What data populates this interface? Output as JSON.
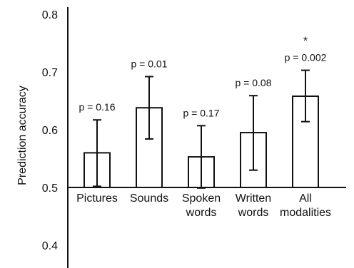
{
  "chart_data": {
    "type": "bar",
    "categories": [
      [
        "Pictures"
      ],
      [
        "Sounds"
      ],
      [
        "Spoken",
        "words"
      ],
      [
        "Written",
        "words"
      ],
      [
        "All",
        "modalities"
      ]
    ],
    "values": [
      0.56,
      0.638,
      0.553,
      0.595,
      0.658
    ],
    "error_low": [
      0.502,
      0.584,
      0.499,
      0.53,
      0.614
    ],
    "error_high": [
      0.617,
      0.692,
      0.607,
      0.659,
      0.703
    ],
    "annotations": [
      "p = 0.16",
      "p = 0.01",
      "p = 0.17",
      "p = 0.08",
      "p = 0.002"
    ],
    "significance_marks": [
      "",
      "",
      "",
      "",
      "*"
    ],
    "title": "",
    "xlabel": "",
    "ylabel": "Prediction accuracy",
    "ylim": [
      0.35,
      0.8
    ],
    "baseline": 0.5,
    "yticks": [
      "0.4",
      "0.5",
      "0.6",
      "0.7",
      "0.8"
    ],
    "grid": false
  }
}
